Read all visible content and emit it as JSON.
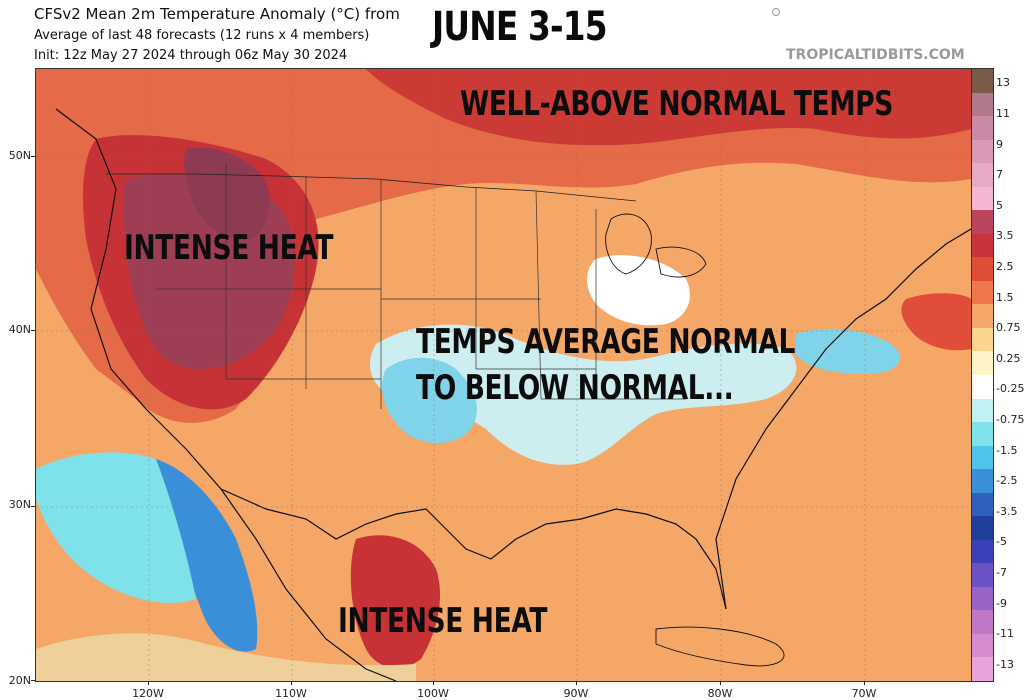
{
  "header": {
    "title": "CFSv2 Mean 2m Temperature Anomaly (°C) from",
    "subtitle_line1": "Average of last 48 forecasts (12 runs x 4 members)",
    "subtitle_line2": "Init: 12z May 27 2024 through 06z May 30 2024",
    "headline": "JUNE 3-15",
    "credit": "TROPICALTIDBITS.COM"
  },
  "annotations": {
    "well_above": "WELL-ABOVE NORMAL TEMPS",
    "intense_heat_west": "INTENSE HEAT",
    "temps_line1": "TEMPS AVERAGE NORMAL",
    "temps_line2": "TO BELOW NORMAL...",
    "intense_heat_south": "INTENSE HEAT"
  },
  "axes": {
    "lat_labels": [
      "50N",
      "40N",
      "30N",
      "20N"
    ],
    "lon_labels": [
      "120W",
      "110W",
      "100W",
      "90W",
      "80W",
      "70W"
    ]
  },
  "colorbar": {
    "labels": [
      "13",
      "11",
      "9",
      "7",
      "5",
      "3.5",
      "2.5",
      "1.5",
      "0.75",
      "0.25",
      "-0.25",
      "-0.75",
      "-1.5",
      "-2.5",
      "-3.5",
      "-5",
      "-7",
      "-9",
      "-11",
      "-13"
    ],
    "colors": [
      "#7b5a4a",
      "#b07a8c",
      "#c98aa8",
      "#d99ab8",
      "#e6a9c8",
      "#f2b7d2",
      "#b9465e",
      "#c9333a",
      "#e04e3a",
      "#f0774a",
      "#f6a76a",
      "#fbd48e",
      "#fff3c8",
      "#ffffff",
      "#bff2f0",
      "#7fe2ea",
      "#4fc3ec",
      "#3b8fd8",
      "#2f5fbf",
      "#203f9a",
      "#3a40b8",
      "#6a52c4",
      "#9a63c8",
      "#c077c6",
      "#d48bcf",
      "#e6a4db"
    ]
  }
}
